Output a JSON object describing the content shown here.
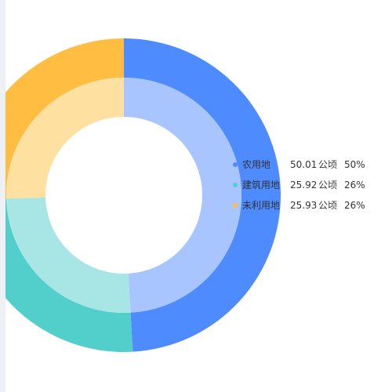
{
  "chart_data": {
    "type": "pie",
    "unit": "公顷",
    "series": [
      {
        "name": "农用地",
        "value": 50.01,
        "percent": "50%",
        "color": "#4d8bff",
        "inner_color": "#a9c5ff"
      },
      {
        "name": "建筑用地",
        "value": 25.92,
        "percent": "26%",
        "color": "#52cecb",
        "inner_color": "#a8e6e5"
      },
      {
        "name": "未利用地",
        "value": 25.93,
        "percent": "26%",
        "color": "#ffbe41",
        "inner_color": "#fee0a1"
      }
    ],
    "legend_position": "right"
  }
}
